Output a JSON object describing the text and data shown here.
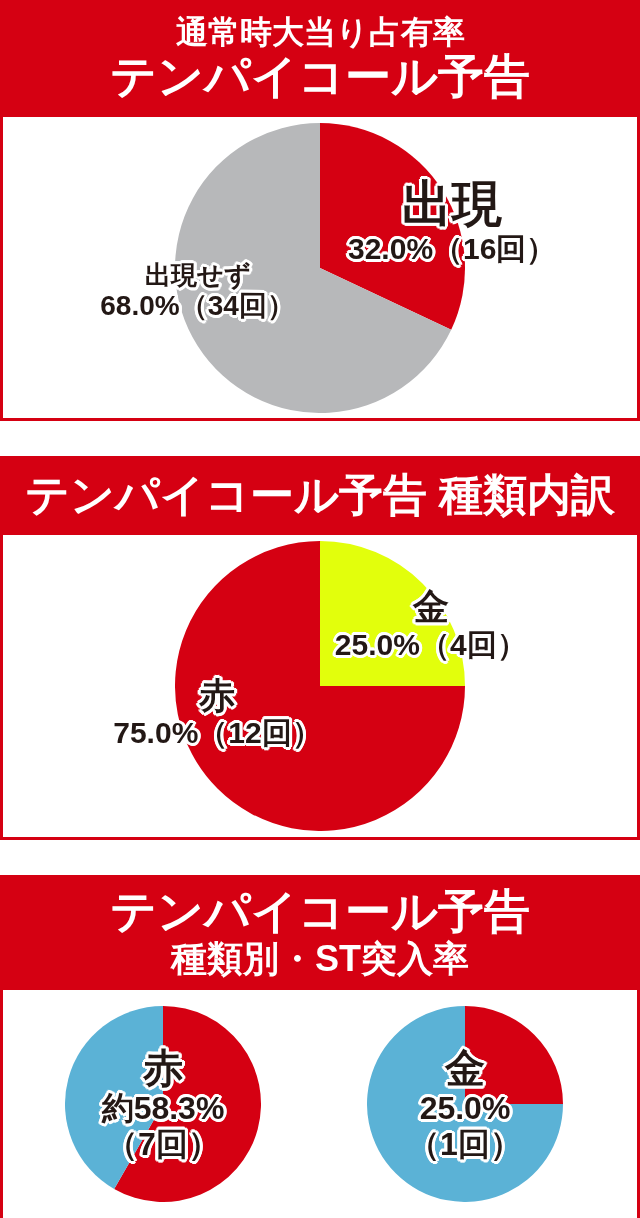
{
  "chart_data": [
    {
      "type": "pie",
      "subtitle": "通常時大当り占有率",
      "title": "テンパイコール予告",
      "categories": [
        "出現",
        "出現せず"
      ],
      "values": [
        32.0,
        68.0
      ],
      "colors": [
        "#d50012",
        "#b7b8ba"
      ],
      "value_labels": [
        "32.0%（16回）",
        "68.0%（34回）"
      ]
    },
    {
      "type": "pie",
      "title": "テンパイコール予告 種類内訳",
      "categories": [
        "金",
        "赤"
      ],
      "values": [
        25.0,
        75.0
      ],
      "colors": [
        "#e2ff0c",
        "#d50012"
      ],
      "value_labels": [
        "25.0%（4回）",
        "75.0%（12回）"
      ]
    },
    {
      "type": "pie",
      "title": "テンパイコール予告",
      "subtitle": "種類別・ST突入率",
      "categories": [
        "赤",
        null
      ],
      "values": [
        58.3,
        41.7
      ],
      "colors": [
        "#d50012",
        "#5bb2d6"
      ],
      "value_labels": [
        "約58.3%\n（7回）",
        null
      ]
    },
    {
      "type": "pie",
      "categories": [
        "金",
        null
      ],
      "values": [
        25.0,
        75.0
      ],
      "colors": [
        "#d50012",
        "#5bb2d6"
      ],
      "value_labels": [
        "25.0%\n（1回）",
        null
      ]
    }
  ]
}
